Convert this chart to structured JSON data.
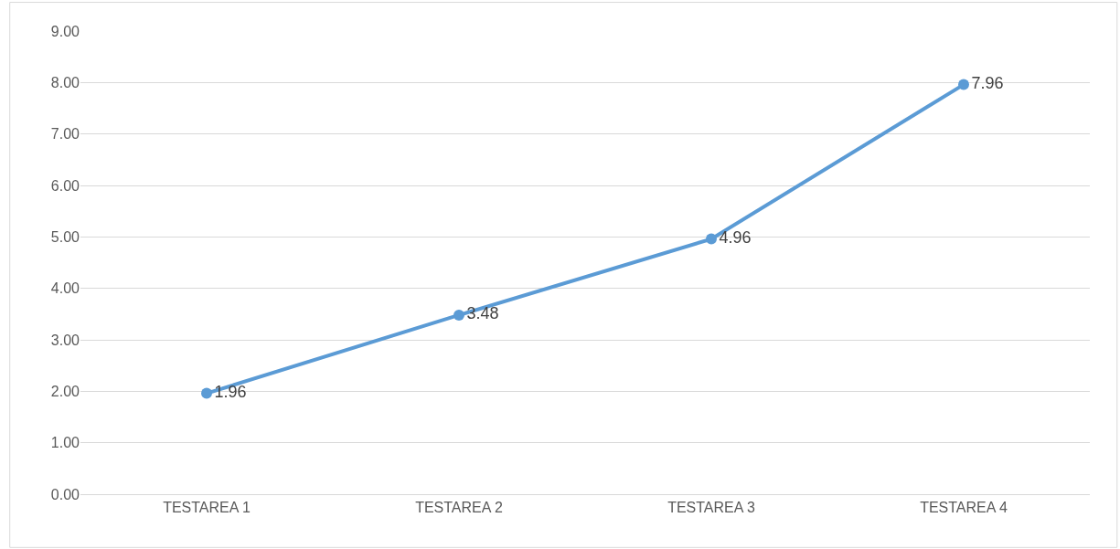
{
  "chart_data": {
    "type": "line",
    "categories": [
      "TESTAREA 1",
      "TESTAREA 2",
      "TESTAREA 3",
      "TESTAREA 4"
    ],
    "series": [
      {
        "color": "#5b9bd5",
        "values": [
          1.96,
          3.48,
          4.96,
          7.96
        ]
      }
    ],
    "ylim": [
      0,
      9
    ],
    "yticks": [
      {
        "value": 0,
        "label": "0.00"
      },
      {
        "value": 1,
        "label": "1.00"
      },
      {
        "value": 2,
        "label": "2.00"
      },
      {
        "value": 3,
        "label": "3.00"
      },
      {
        "value": 4,
        "label": "4.00"
      },
      {
        "value": 5,
        "label": "5.00"
      },
      {
        "value": 6,
        "label": "6.00"
      },
      {
        "value": 7,
        "label": "7.00"
      },
      {
        "value": 8,
        "label": "8.00"
      },
      {
        "value": 9,
        "label": "9.00"
      }
    ],
    "grid": "y",
    "marker": "circle",
    "line_style": "solid",
    "data_labels": true
  }
}
